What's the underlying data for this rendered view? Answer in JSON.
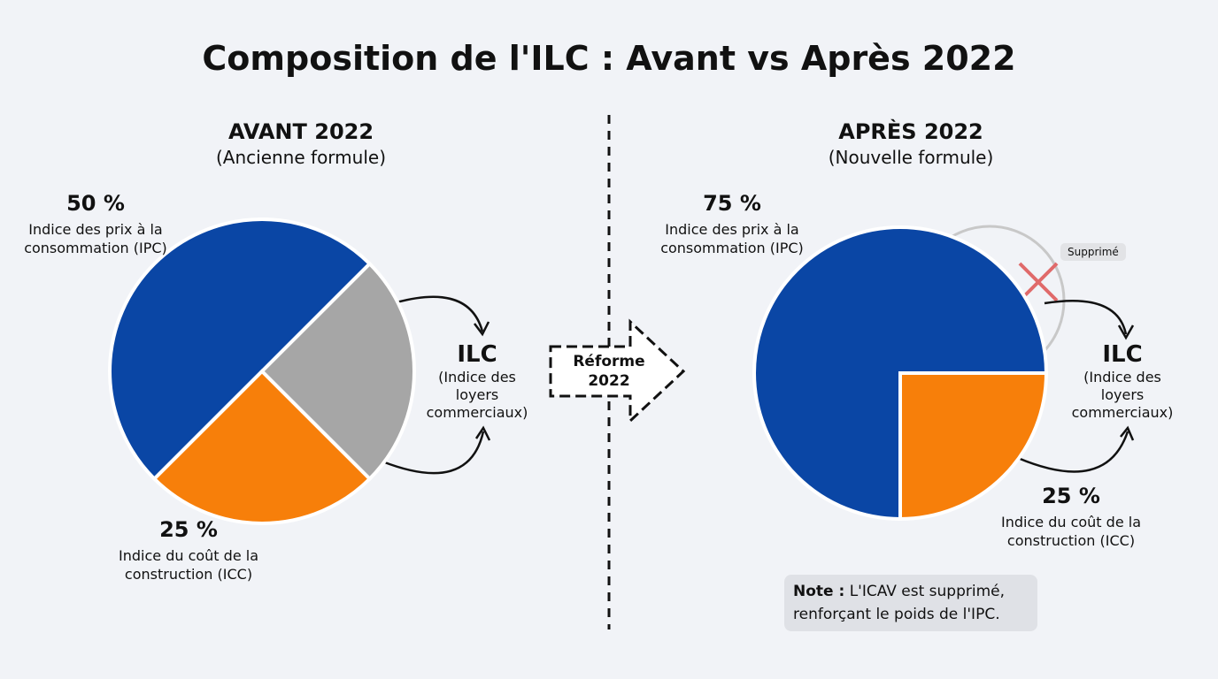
{
  "title": "Composition de l'ILC : Avant vs Après 2022",
  "chart_data": [
    {
      "type": "pie",
      "title": "AVANT 2022",
      "subtitle": "(Ancienne formule)",
      "categories": [
        "Indice des prix à la consommation (IPC)",
        null,
        "Indice du coût de la construction (ICC)"
      ],
      "values": [
        50,
        25,
        25
      ],
      "value_labels": [
        "50 %",
        null,
        "25 %"
      ],
      "colors": [
        "#0a46a5",
        "#a6a6a6",
        "#f77f0a"
      ],
      "result_label": "ILC",
      "result_sublabel": "(Indice des loyers commerciaux)"
    },
    {
      "type": "pie",
      "title": "APRÈS 2022",
      "subtitle": "(Nouvelle formule)",
      "categories": [
        "Indice des prix à la consommation (IPC)",
        "Indice du coût de la construction (ICC)"
      ],
      "values": [
        75,
        25
      ],
      "value_labels": [
        "75 %",
        "25 %"
      ],
      "colors": [
        "#0a46a5",
        "#f77f0a"
      ],
      "result_label": "ILC",
      "result_sublabel": "(Indice des loyers commerciaux)",
      "annotation": "Supprimé"
    }
  ],
  "reform_label": "Réforme 2022",
  "note": {
    "label": "Note :",
    "text": "L'ICAV est supprimé, renforçant le poids de l'IPC."
  }
}
